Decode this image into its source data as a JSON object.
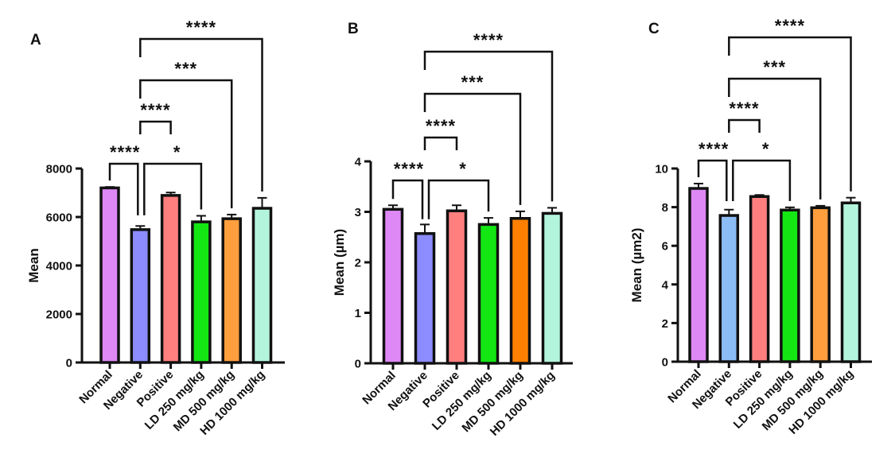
{
  "chart_data": [
    {
      "panel": "A",
      "type": "bar",
      "title": "",
      "xlabel": "",
      "ylabel": "Mean",
      "ylim": [
        0,
        8000
      ],
      "yticks": [
        0,
        2000,
        4000,
        6000,
        8000
      ],
      "ytick_labels": [
        "0",
        "2000",
        "4000",
        "6000",
        "8000"
      ],
      "categories": [
        "Normal",
        "Negative",
        "Positive",
        "LD 250 mg/kg",
        "MD 500 mg/kg",
        "HD 1000 mg/kg"
      ],
      "values": [
        7200,
        5480,
        6890,
        5800,
        5930,
        6360
      ],
      "errors": [
        40,
        150,
        120,
        250,
        170,
        430
      ],
      "colors": [
        "#dd88f5",
        "#8c8cff",
        "#ff7f7f",
        "#14e614",
        "#ff9e3d",
        "#b3f5dc"
      ],
      "comparisons": [
        {
          "from": 0,
          "to": 1,
          "label": "****"
        },
        {
          "from": 1,
          "to": 3,
          "label": "*"
        },
        {
          "from": 1,
          "to": 2,
          "label": "****"
        },
        {
          "from": 1,
          "to": 4,
          "label": "***"
        },
        {
          "from": 1,
          "to": 5,
          "label": "****"
        }
      ],
      "grid": false
    },
    {
      "panel": "B",
      "type": "bar",
      "title": "",
      "xlabel": "",
      "ylabel": "Mean (µm)",
      "ylim": [
        0,
        4
      ],
      "yticks": [
        0,
        1,
        2,
        3,
        4
      ],
      "ytick_labels": [
        "0",
        "1",
        "2",
        "3",
        "4"
      ],
      "categories": [
        "Normal",
        "Negative",
        "Positive",
        "LD 250 mg/kg",
        "MD 500 mg/kg",
        "HD 1000 mg/kg"
      ],
      "values": [
        3.05,
        2.57,
        3.02,
        2.75,
        2.87,
        2.97
      ],
      "errors": [
        0.08,
        0.18,
        0.11,
        0.13,
        0.14,
        0.11
      ],
      "colors": [
        "#dd88f5",
        "#8c8cff",
        "#ff7f7f",
        "#14e614",
        "#ff8000",
        "#b3f5dc"
      ],
      "comparisons": [
        {
          "from": 0,
          "to": 1,
          "label": "****"
        },
        {
          "from": 1,
          "to": 3,
          "label": "*"
        },
        {
          "from": 1,
          "to": 2,
          "label": "****"
        },
        {
          "from": 1,
          "to": 4,
          "label": "***"
        },
        {
          "from": 1,
          "to": 5,
          "label": "****"
        }
      ],
      "grid": false
    },
    {
      "panel": "C",
      "type": "bar",
      "title": "",
      "xlabel": "",
      "ylabel": "Mean (µm2)",
      "ylim": [
        0,
        10
      ],
      "yticks": [
        0,
        2,
        4,
        6,
        8,
        10
      ],
      "ytick_labels": [
        "0",
        "2",
        "4",
        "6",
        "8",
        "10"
      ],
      "categories": [
        "Normal",
        "Negative",
        "Positive",
        "LD 250 mg/kg",
        "MD 500 mg/kg",
        "HD 1000 mg/kg"
      ],
      "values": [
        8.97,
        7.57,
        8.55,
        7.85,
        7.97,
        8.22
      ],
      "errors": [
        0.25,
        0.3,
        0.08,
        0.14,
        0.1,
        0.27
      ],
      "colors": [
        "#dd88f5",
        "#8cbcf5",
        "#ff7f7f",
        "#14e614",
        "#ff9e3d",
        "#b3f5dc"
      ],
      "comparisons": [
        {
          "from": 0,
          "to": 1,
          "label": "****"
        },
        {
          "from": 1,
          "to": 3,
          "label": "*"
        },
        {
          "from": 1,
          "to": 2,
          "label": "****"
        },
        {
          "from": 1,
          "to": 4,
          "label": "***"
        },
        {
          "from": 1,
          "to": 5,
          "label": "****"
        }
      ],
      "grid": false
    }
  ]
}
